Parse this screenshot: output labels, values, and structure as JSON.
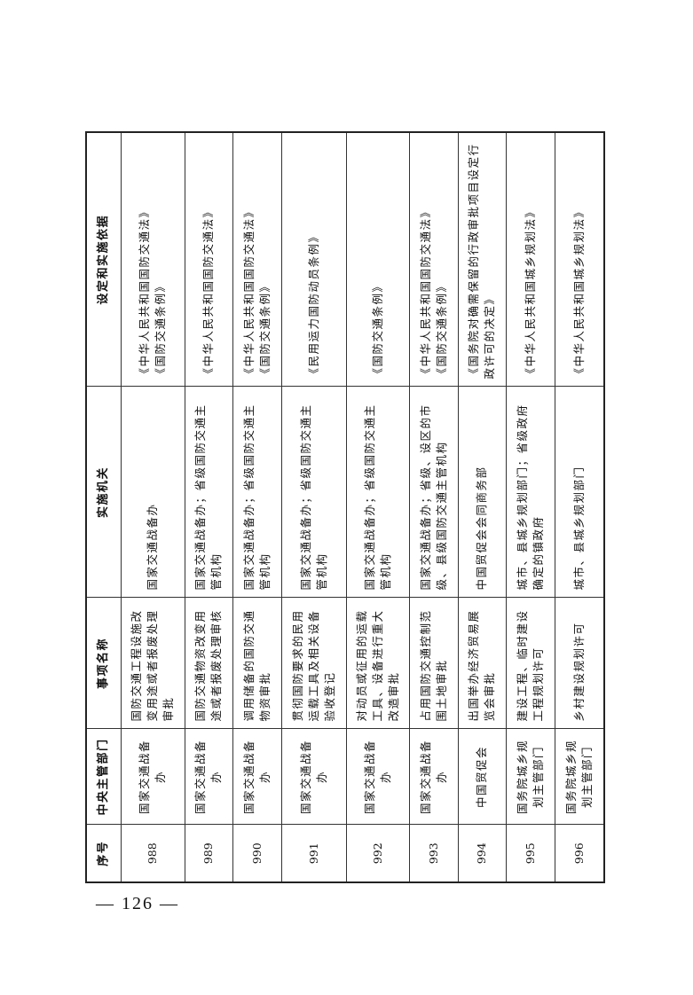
{
  "table": {
    "headers": [
      "序号",
      "中央主管部门",
      "事项名称",
      "实施机关",
      "设定和实施依据"
    ],
    "rows": [
      {
        "no": "988",
        "dept": "国家交通战备办",
        "item": "国防交通工程设施改变用途或者报废处理审批",
        "agency": "国家交通战备办",
        "basis": "《中华人民共和国国防交通法》\n《国防交通条例》"
      },
      {
        "no": "989",
        "dept": "国家交通战备办",
        "item": "国防交通物资改变用途或者报废处理审核",
        "agency": "国家交通战备办；省级国防交通主管机构",
        "basis": "《中华人民共和国国防交通法》"
      },
      {
        "no": "990",
        "dept": "国家交通战备办",
        "item": "调用储备的国防交通物资审批",
        "agency": "国家交通战备办；省级国防交通主管机构",
        "basis": "《中华人民共和国国防交通法》\n《国防交通条例》"
      },
      {
        "no": "991",
        "dept": "国家交通战备办",
        "item": "贯彻国防要求的民用运载工具及相关设备验收登记",
        "agency": "国家交通战备办；省级国防交通主管机构",
        "basis": "《民用运力国防动员条例》"
      },
      {
        "no": "992",
        "dept": "国家交通战备办",
        "item": "对动员或征用的运载工具、设备进行重大改造审批",
        "agency": "国家交通战备办；省级国防交通主管机构",
        "basis": "《国防交通条例》"
      },
      {
        "no": "993",
        "dept": "国家交通战备办",
        "item": "占用国防交通控制范围土地审批",
        "agency": "国家交通战备办；省级、设区的市级、县级国防交通主管机构",
        "basis": "《中华人民共和国国防交通法》\n《国防交通条例》"
      },
      {
        "no": "994",
        "dept": "中国贸促会",
        "item": "出国举办经济贸易展览会审批",
        "agency": "中国贸促会会同商务部",
        "basis": "《国务院对确需保留的行政审批项目设定行政许可的决定》"
      },
      {
        "no": "995",
        "dept": "国务院城乡规划主管部门",
        "item": "建设工程、临时建设工程规划许可",
        "agency": "城市、县城乡规划部门；省级政府确定的镇政府",
        "basis": "《中华人民共和国城乡规划法》"
      },
      {
        "no": "996",
        "dept": "国务院城乡规划主管部门",
        "item": "乡村建设规划许可",
        "agency": "城市、县城乡规划部门",
        "basis": "《中华人民共和国城乡规划法》"
      }
    ]
  },
  "page_number": "— 126 —"
}
